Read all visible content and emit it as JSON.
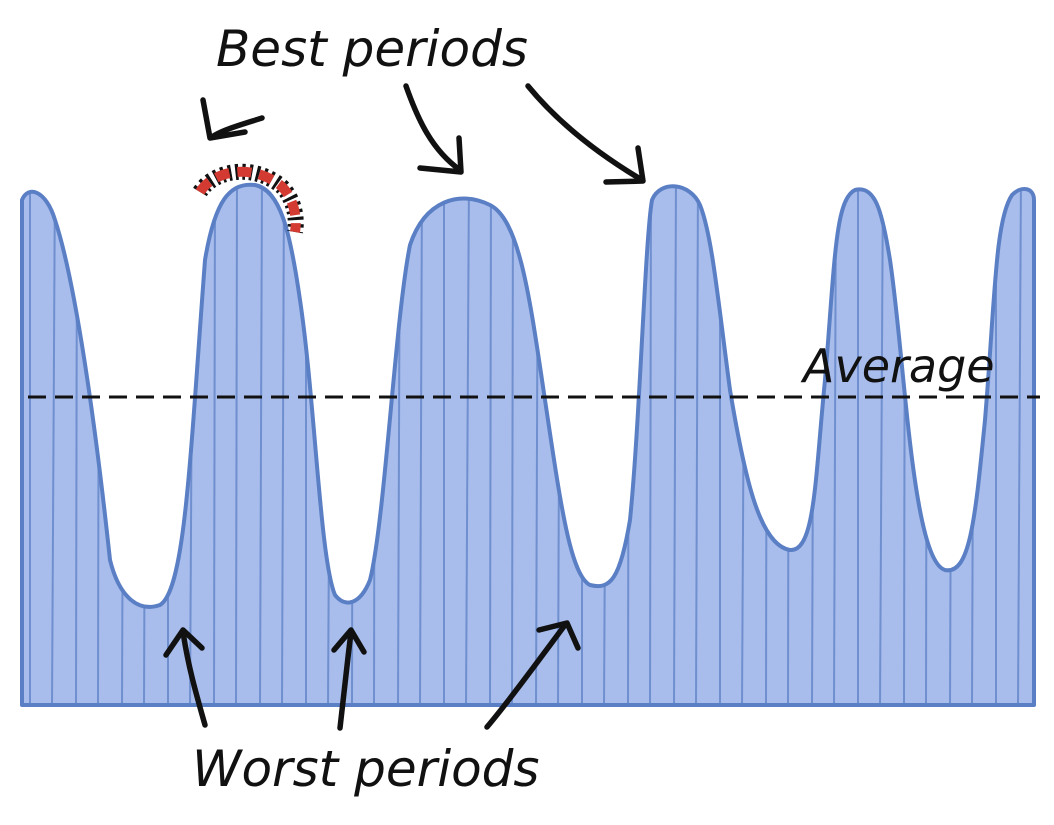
{
  "labels": {
    "best": "Best periods",
    "worst": "Worst periods",
    "average": "Average"
  },
  "colors": {
    "wave_fill": "#a8bdec",
    "wave_stroke": "#5b7fc4",
    "hatch": "#6f8fcf",
    "average_line": "#111111",
    "arrow": "#111111",
    "highlight": "#d33a32"
  },
  "wave": {
    "peaks": 6,
    "troughs": 5,
    "highlighted_peak_index": 1
  },
  "icons": {
    "highlight": "dashed-red-arc-icon",
    "arrow": "arrow-icon"
  }
}
